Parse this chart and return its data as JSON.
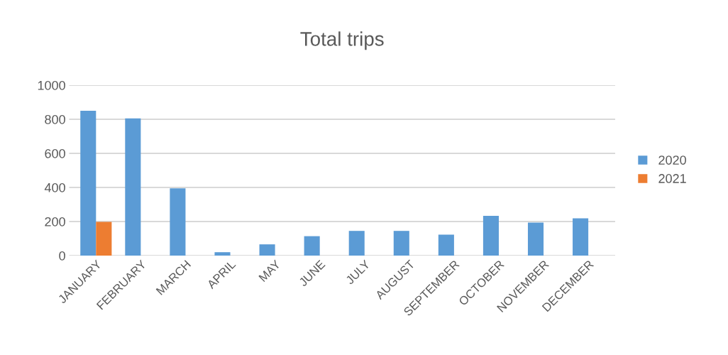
{
  "chart_data": {
    "type": "bar",
    "title": "Total trips",
    "categories": [
      "JANUARY",
      "FEBRUARY",
      "MARCH",
      "APRIL",
      "MAY",
      "JUNE",
      "JULY",
      "AUGUST",
      "SEPTEMBER",
      "OCTOBER",
      "NOVEMBER",
      "DECEMBER"
    ],
    "series": [
      {
        "name": "2020",
        "color": "#5b9bd5",
        "values": [
          850,
          805,
          395,
          20,
          66,
          114,
          145,
          145,
          123,
          233,
          194,
          219
        ]
      },
      {
        "name": "2021",
        "color": "#ed7d31",
        "values": [
          198,
          null,
          null,
          null,
          null,
          null,
          null,
          null,
          null,
          null,
          null,
          null
        ]
      }
    ],
    "ylim": [
      0,
      1000
    ],
    "yticks": [
      0,
      200,
      400,
      600,
      800,
      1000
    ],
    "grid": "y",
    "legend": "right"
  }
}
